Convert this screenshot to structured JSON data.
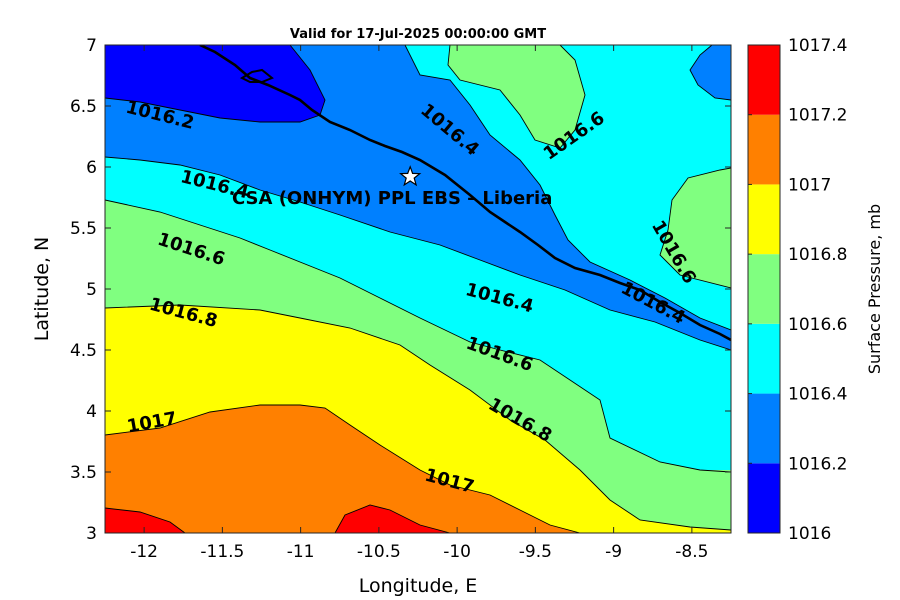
{
  "chart_data": {
    "type": "contour-map",
    "title": "Valid for 17-Jul-2025 00:00:00 GMT",
    "xlabel": "Longitude, E",
    "ylabel": "Latitude, N",
    "xlim": [
      -12.25,
      -8.25
    ],
    "ylim": [
      3,
      7
    ],
    "xticks": [
      -12,
      -11.5,
      -11,
      -10.5,
      -10,
      -9.5,
      -9,
      -8.5
    ],
    "yticks": [
      3,
      3.5,
      4,
      4.5,
      5,
      5.5,
      6,
      6.5,
      7
    ],
    "colorbar": {
      "label": "Surface Pressure, mb",
      "levels": [
        1016,
        1016.2,
        1016.4,
        1016.6,
        1016.8,
        1017,
        1017.2,
        1017.4
      ],
      "colors": [
        "#0000ff",
        "#0080ff",
        "#00ffff",
        "#80ff80",
        "#ffff00",
        "#ff8000",
        "#ff0000",
        "#800000"
      ]
    },
    "contour_labels": [
      {
        "text": "1016.2",
        "lon": -11.9,
        "lat": 6.42
      },
      {
        "text": "1016.4",
        "lon": -10.05,
        "lat": 6.3
      },
      {
        "text": "1016.6",
        "lon": -9.25,
        "lat": 6.25
      },
      {
        "text": "1016.4",
        "lon": -11.55,
        "lat": 5.85
      },
      {
        "text": "1016.6",
        "lon": -11.7,
        "lat": 5.32
      },
      {
        "text": "1016.6",
        "lon": -8.62,
        "lat": 5.3
      },
      {
        "text": "1016.8",
        "lon": -11.75,
        "lat": 4.8
      },
      {
        "text": "1016.4",
        "lon": -9.73,
        "lat": 4.92
      },
      {
        "text": "1016.4",
        "lon": -8.75,
        "lat": 4.88
      },
      {
        "text": "1016.6",
        "lon": -9.73,
        "lat": 4.46
      },
      {
        "text": "1016.8",
        "lon": -9.6,
        "lat": 3.92
      },
      {
        "text": "1017",
        "lon": -11.95,
        "lat": 3.9
      },
      {
        "text": "1017",
        "lon": -10.05,
        "lat": 3.42
      }
    ],
    "site": {
      "label": "CSA (ONHYM) PPL EBS  – Liberia",
      "lon": -10.3,
      "lat": 5.92
    }
  }
}
